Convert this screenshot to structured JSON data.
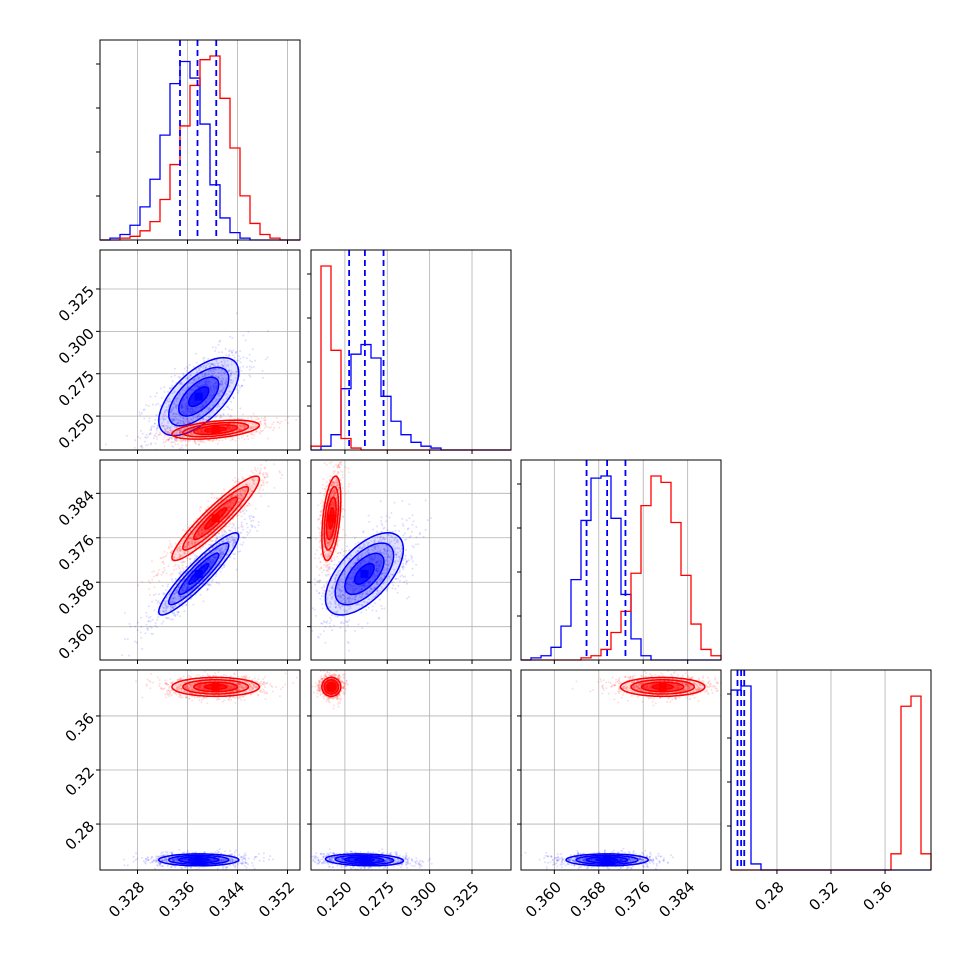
{
  "chart_data": {
    "type": "corner",
    "colors": {
      "series_a": "#0000ff",
      "series_b": "#ff0000",
      "grid": "#b0b0b0",
      "quantile": "#0000ff"
    },
    "grid": true,
    "parameters": [
      {
        "range": [
          0.322,
          0.354
        ],
        "ticks": [
          0.328,
          0.336,
          0.344,
          0.352
        ],
        "tick_labels": [
          "0.328",
          "0.336",
          "0.344",
          "0.352"
        ]
      },
      {
        "range": [
          0.23,
          0.348
        ],
        "ticks": [
          0.25,
          0.275,
          0.3,
          0.325
        ],
        "tick_labels": [
          "0.250",
          "0.275",
          "0.300",
          "0.325"
        ]
      },
      {
        "range": [
          0.354,
          0.39
        ],
        "ticks": [
          0.36,
          0.368,
          0.376,
          0.384
        ],
        "tick_labels": [
          "0.360",
          "0.368",
          "0.376",
          "0.384"
        ]
      },
      {
        "range": [
          0.246,
          0.394
        ],
        "ticks": [
          0.28,
          0.32,
          0.36
        ],
        "tick_labels": [
          "0.28",
          "0.32",
          "0.36"
        ]
      }
    ],
    "histograms": [
      {
        "param": 0,
        "bins": [
          0.322,
          0.3236,
          0.3252,
          0.3268,
          0.3284,
          0.33,
          0.3316,
          0.3332,
          0.3348,
          0.3364,
          0.338,
          0.3396,
          0.3412,
          0.3428,
          0.3444,
          0.346,
          0.3476,
          0.3492,
          0.3508,
          0.3524,
          0.354
        ],
        "series": [
          {
            "color": "#0000ff",
            "counts": [
              0,
              0.01,
              0.03,
              0.08,
              0.18,
              0.33,
              0.57,
              0.85,
              0.97,
              0.88,
              0.63,
              0.3,
              0.12,
              0.04,
              0.01,
              0,
              0,
              0,
              0,
              0
            ]
          },
          {
            "color": "#ff0000",
            "counts": [
              0,
              0,
              0.01,
              0.02,
              0.05,
              0.1,
              0.22,
              0.41,
              0.62,
              0.84,
              0.98,
              1.0,
              0.77,
              0.5,
              0.24,
              0.09,
              0.03,
              0.01,
              0,
              0
            ]
          }
        ],
        "quantiles": [
          0.3348,
          0.3376,
          0.3406
        ]
      },
      {
        "param": 1,
        "bins": [
          0.23,
          0.2359,
          0.2418,
          0.2477,
          0.2536,
          0.2595,
          0.2654,
          0.2713,
          0.2772,
          0.2831,
          0.289,
          0.2949,
          0.3008,
          0.3067,
          0.3126,
          0.3185,
          0.3244,
          0.3303,
          0.3362,
          0.3421,
          0.348
        ],
        "series": [
          {
            "color": "#0000ff",
            "counts": [
              0,
              0.02,
              0.08,
              0.32,
              0.5,
              0.55,
              0.48,
              0.28,
              0.15,
              0.08,
              0.04,
              0.02,
              0.01,
              0,
              0,
              0,
              0,
              0,
              0,
              0
            ]
          },
          {
            "color": "#ff0000",
            "counts": [
              0.02,
              0.96,
              0.52,
              0.06,
              0.01,
              0,
              0,
              0,
              0,
              0,
              0,
              0,
              0,
              0,
              0,
              0,
              0,
              0,
              0,
              0
            ]
          }
        ],
        "quantiles": [
          0.2525,
          0.2618,
          0.2728
        ]
      },
      {
        "param": 2,
        "bins": [
          0.354,
          0.3558,
          0.3576,
          0.3594,
          0.3612,
          0.363,
          0.3648,
          0.3666,
          0.3684,
          0.3702,
          0.372,
          0.3738,
          0.3756,
          0.3774,
          0.3792,
          0.381,
          0.3828,
          0.3846,
          0.3864,
          0.3882,
          0.39
        ],
        "series": [
          {
            "color": "#0000ff",
            "counts": [
              0,
              0.01,
              0.02,
              0.06,
              0.16,
              0.38,
              0.66,
              0.86,
              0.87,
              0.67,
              0.31,
              0.1,
              0.02,
              0,
              0,
              0,
              0,
              0,
              0,
              0
            ]
          },
          {
            "color": "#ff0000",
            "counts": [
              0,
              0,
              0,
              0,
              0,
              0,
              0.01,
              0.02,
              0.05,
              0.13,
              0.23,
              0.41,
              0.73,
              0.87,
              0.84,
              0.65,
              0.4,
              0.17,
              0.05,
              0.02
            ]
          }
        ],
        "quantiles": [
          0.3658,
          0.3695,
          0.3728
        ]
      },
      {
        "param": 3,
        "bins": [
          0.246,
          0.2534,
          0.2608,
          0.2682,
          0.2756,
          0.283,
          0.2904,
          0.2978,
          0.3052,
          0.3126,
          0.32,
          0.3274,
          0.3348,
          0.3422,
          0.3496,
          0.357,
          0.3644,
          0.3718,
          0.3792,
          0.3866,
          0.394
        ],
        "series": [
          {
            "color": "#0000ff",
            "counts": [
              0.89,
              0.91,
              0.03,
              0,
              0,
              0,
              0,
              0,
              0,
              0,
              0,
              0,
              0,
              0,
              0,
              0,
              0,
              0,
              0,
              0
            ]
          },
          {
            "color": "#ff0000",
            "counts": [
              0,
              0,
              0,
              0,
              0,
              0,
              0,
              0,
              0,
              0,
              0,
              0,
              0,
              0,
              0,
              0,
              0.08,
              0.81,
              0.86,
              0.08
            ]
          }
        ],
        "quantiles": [
          0.2508,
          0.2535,
          0.2558
        ]
      }
    ],
    "distributions": [
      {
        "color": "#0000ff",
        "mean": [
          0.3378,
          0.2615,
          0.3695,
          0.2535
        ],
        "sd": [
          0.0032,
          0.0115,
          0.0037,
          0.0022
        ],
        "corr": [
          [
            1,
            0.62,
            0.92,
            0
          ],
          [
            0.62,
            1,
            0.6,
            -0.15
          ],
          [
            0.92,
            0.6,
            1,
            0
          ],
          [
            0,
            -0.15,
            0,
            1
          ]
        ]
      },
      {
        "color": "#ff0000",
        "mean": [
          0.3405,
          0.242,
          0.3795,
          0.3815
        ],
        "sd": [
          0.0035,
          0.0028,
          0.0038,
          0.0035
        ],
        "corr": [
          [
            1,
            0.45,
            0.93,
            0
          ],
          [
            0.45,
            1,
            0.45,
            0
          ],
          [
            0.93,
            0.45,
            1,
            0
          ],
          [
            0,
            0,
            0,
            1
          ]
        ]
      }
    ]
  }
}
